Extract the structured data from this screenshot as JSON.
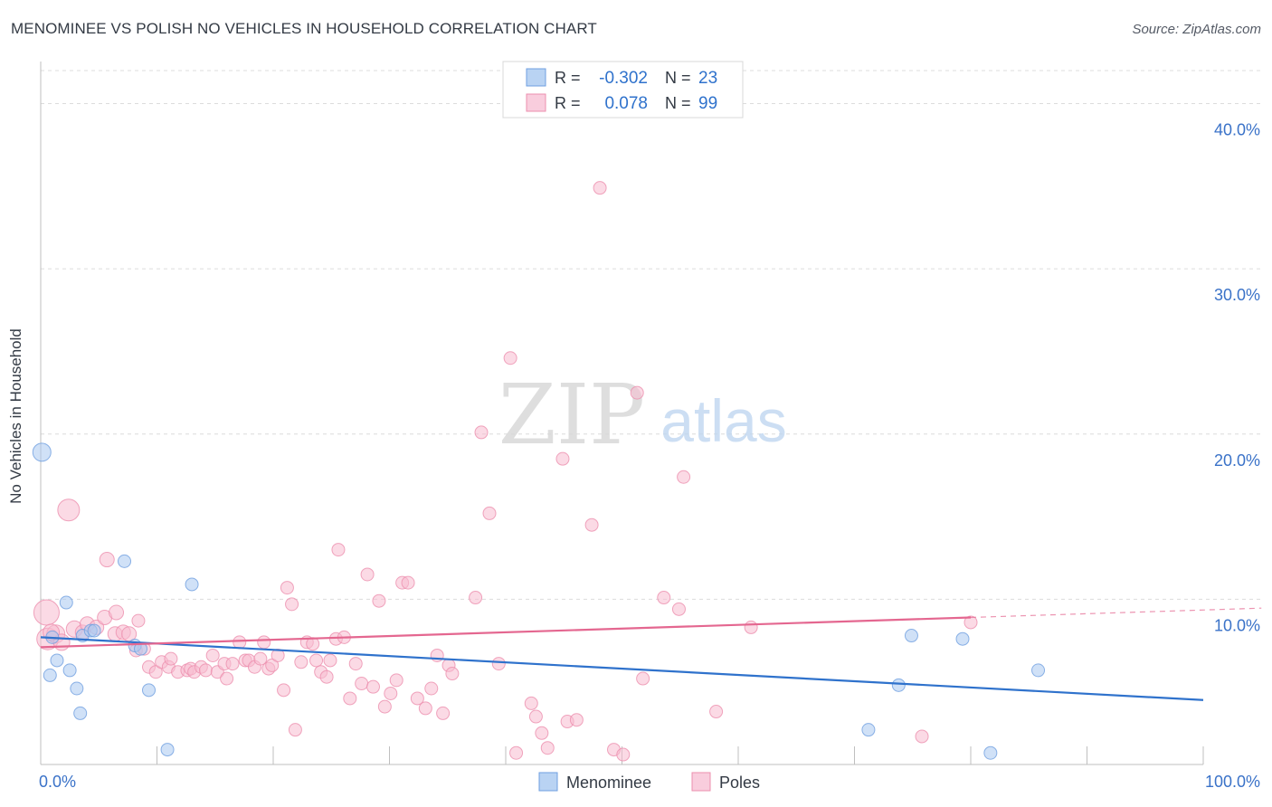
{
  "header": {
    "title": "MENOMINEE VS POLISH NO VEHICLES IN HOUSEHOLD CORRELATION CHART",
    "source": "Source: ZipAtlas.com"
  },
  "watermark": {
    "zip": "ZIP",
    "atlas": "atlas"
  },
  "colors": {
    "menominee_fill": "#a9c8f0",
    "menominee_stroke": "#6f9fe0",
    "menominee_line": "#2f72cc",
    "poles_fill": "#f7bcd0",
    "poles_stroke": "#ec8fae",
    "poles_line": "#e46790",
    "axis_text": "#3a72c8",
    "grid": "#dcdcdc"
  },
  "legend": {
    "rows": [
      {
        "r_label": "R =",
        "r_value": "-0.302",
        "n_label": "N =",
        "n_value": "23"
      },
      {
        "r_label": "R =",
        "r_value": "0.078",
        "n_label": "N =",
        "n_value": "99"
      }
    ]
  },
  "bottom_legend": [
    "Menominee",
    "Poles"
  ],
  "chart_data": {
    "type": "scatter",
    "xlabel": "",
    "ylabel": "No Vehicles in Household",
    "xlim": [
      0,
      100
    ],
    "ylim": [
      0,
      42
    ],
    "x_tick_labels": [
      {
        "value": 0,
        "label": "0.0%"
      },
      {
        "value": 100,
        "label": "100.0%"
      }
    ],
    "y_tick_labels": [
      {
        "value": 10,
        "label": "10.0%"
      },
      {
        "value": 20,
        "label": "20.0%"
      },
      {
        "value": 30,
        "label": "30.0%"
      },
      {
        "value": 40,
        "label": "40.0%"
      }
    ],
    "grid": true,
    "legend_position": "top-center",
    "series": [
      {
        "name": "Menominee",
        "trend": {
          "x": [
            0,
            100
          ],
          "y": [
            7.7,
            3.9
          ],
          "r": -0.302,
          "n": 23
        },
        "points": [
          {
            "x": 0.1,
            "y": 18.9,
            "s": 10
          },
          {
            "x": 1.0,
            "y": 7.7,
            "s": 7
          },
          {
            "x": 1.4,
            "y": 6.3,
            "s": 7
          },
          {
            "x": 0.8,
            "y": 5.4,
            "s": 7
          },
          {
            "x": 2.2,
            "y": 9.8,
            "s": 7
          },
          {
            "x": 2.5,
            "y": 5.7,
            "s": 7
          },
          {
            "x": 3.1,
            "y": 4.6,
            "s": 7
          },
          {
            "x": 3.4,
            "y": 3.1,
            "s": 7
          },
          {
            "x": 3.6,
            "y": 7.8,
            "s": 7
          },
          {
            "x": 4.3,
            "y": 8.1,
            "s": 7
          },
          {
            "x": 4.6,
            "y": 8.1,
            "s": 7
          },
          {
            "x": 7.2,
            "y": 12.3,
            "s": 7
          },
          {
            "x": 8.1,
            "y": 7.2,
            "s": 7
          },
          {
            "x": 8.6,
            "y": 7.0,
            "s": 7
          },
          {
            "x": 9.3,
            "y": 4.5,
            "s": 7
          },
          {
            "x": 10.9,
            "y": 0.9,
            "s": 7
          },
          {
            "x": 13.0,
            "y": 10.9,
            "s": 7
          },
          {
            "x": 73.8,
            "y": 4.8,
            "s": 7
          },
          {
            "x": 74.9,
            "y": 7.8,
            "s": 7
          },
          {
            "x": 71.2,
            "y": 2.1,
            "s": 7
          },
          {
            "x": 79.3,
            "y": 7.6,
            "s": 7
          },
          {
            "x": 81.7,
            "y": 0.7,
            "s": 7
          },
          {
            "x": 85.8,
            "y": 5.7,
            "s": 7
          }
        ]
      },
      {
        "name": "Poles",
        "trend": {
          "x": [
            0,
            80
          ],
          "y": [
            7.1,
            8.9
          ],
          "r": 0.078,
          "n": 99
        },
        "points": [
          {
            "x": 0.5,
            "y": 9.2,
            "s": 14
          },
          {
            "x": 0.6,
            "y": 7.6,
            "s": 12
          },
          {
            "x": 1.3,
            "y": 7.9,
            "s": 10
          },
          {
            "x": 1.8,
            "y": 7.4,
            "s": 9
          },
          {
            "x": 2.4,
            "y": 15.4,
            "s": 12
          },
          {
            "x": 2.9,
            "y": 8.2,
            "s": 9
          },
          {
            "x": 3.6,
            "y": 8.0,
            "s": 8
          },
          {
            "x": 4.0,
            "y": 8.5,
            "s": 8
          },
          {
            "x": 4.8,
            "y": 8.3,
            "s": 8
          },
          {
            "x": 5.5,
            "y": 8.9,
            "s": 8
          },
          {
            "x": 5.7,
            "y": 12.4,
            "s": 8
          },
          {
            "x": 6.4,
            "y": 7.9,
            "s": 8
          },
          {
            "x": 6.5,
            "y": 9.2,
            "s": 8
          },
          {
            "x": 7.1,
            "y": 8.0,
            "s": 8
          },
          {
            "x": 7.6,
            "y": 7.9,
            "s": 8
          },
          {
            "x": 8.2,
            "y": 6.9,
            "s": 7
          },
          {
            "x": 8.4,
            "y": 8.7,
            "s": 7
          },
          {
            "x": 8.9,
            "y": 7.0,
            "s": 7
          },
          {
            "x": 9.3,
            "y": 5.9,
            "s": 7
          },
          {
            "x": 9.9,
            "y": 5.6,
            "s": 7
          },
          {
            "x": 10.4,
            "y": 6.2,
            "s": 7
          },
          {
            "x": 11.0,
            "y": 5.9,
            "s": 7
          },
          {
            "x": 11.2,
            "y": 6.4,
            "s": 7
          },
          {
            "x": 11.8,
            "y": 5.6,
            "s": 7
          },
          {
            "x": 12.6,
            "y": 5.7,
            "s": 7
          },
          {
            "x": 12.9,
            "y": 5.8,
            "s": 7
          },
          {
            "x": 13.2,
            "y": 5.6,
            "s": 7
          },
          {
            "x": 13.8,
            "y": 5.9,
            "s": 7
          },
          {
            "x": 14.2,
            "y": 5.7,
            "s": 7
          },
          {
            "x": 14.8,
            "y": 6.6,
            "s": 7
          },
          {
            "x": 15.2,
            "y": 5.6,
            "s": 7
          },
          {
            "x": 15.8,
            "y": 6.1,
            "s": 7
          },
          {
            "x": 16.0,
            "y": 5.2,
            "s": 7
          },
          {
            "x": 16.5,
            "y": 6.1,
            "s": 7
          },
          {
            "x": 17.1,
            "y": 7.4,
            "s": 7
          },
          {
            "x": 17.6,
            "y": 6.3,
            "s": 7
          },
          {
            "x": 17.9,
            "y": 6.3,
            "s": 7
          },
          {
            "x": 18.4,
            "y": 5.9,
            "s": 7
          },
          {
            "x": 18.9,
            "y": 6.4,
            "s": 7
          },
          {
            "x": 19.2,
            "y": 7.4,
            "s": 7
          },
          {
            "x": 19.6,
            "y": 5.8,
            "s": 7
          },
          {
            "x": 19.9,
            "y": 6.0,
            "s": 7
          },
          {
            "x": 20.4,
            "y": 6.6,
            "s": 7
          },
          {
            "x": 20.9,
            "y": 4.5,
            "s": 7
          },
          {
            "x": 21.2,
            "y": 10.7,
            "s": 7
          },
          {
            "x": 21.6,
            "y": 9.7,
            "s": 7
          },
          {
            "x": 21.9,
            "y": 2.1,
            "s": 7
          },
          {
            "x": 22.4,
            "y": 6.2,
            "s": 7
          },
          {
            "x": 22.9,
            "y": 7.4,
            "s": 7
          },
          {
            "x": 23.4,
            "y": 7.3,
            "s": 7
          },
          {
            "x": 23.7,
            "y": 6.3,
            "s": 7
          },
          {
            "x": 24.1,
            "y": 5.6,
            "s": 7
          },
          {
            "x": 24.6,
            "y": 5.3,
            "s": 7
          },
          {
            "x": 24.9,
            "y": 6.3,
            "s": 7
          },
          {
            "x": 25.4,
            "y": 7.6,
            "s": 7
          },
          {
            "x": 25.6,
            "y": 13.0,
            "s": 7
          },
          {
            "x": 26.1,
            "y": 7.7,
            "s": 7
          },
          {
            "x": 26.6,
            "y": 4.0,
            "s": 7
          },
          {
            "x": 27.1,
            "y": 6.1,
            "s": 7
          },
          {
            "x": 27.6,
            "y": 4.9,
            "s": 7
          },
          {
            "x": 28.1,
            "y": 11.5,
            "s": 7
          },
          {
            "x": 28.6,
            "y": 4.7,
            "s": 7
          },
          {
            "x": 29.1,
            "y": 9.9,
            "s": 7
          },
          {
            "x": 29.6,
            "y": 3.5,
            "s": 7
          },
          {
            "x": 30.1,
            "y": 4.3,
            "s": 7
          },
          {
            "x": 30.6,
            "y": 5.1,
            "s": 7
          },
          {
            "x": 31.1,
            "y": 11.0,
            "s": 7
          },
          {
            "x": 31.6,
            "y": 11.0,
            "s": 7
          },
          {
            "x": 32.4,
            "y": 4.0,
            "s": 7
          },
          {
            "x": 33.1,
            "y": 3.4,
            "s": 7
          },
          {
            "x": 33.6,
            "y": 4.6,
            "s": 7
          },
          {
            "x": 34.1,
            "y": 6.6,
            "s": 7
          },
          {
            "x": 34.6,
            "y": 3.1,
            "s": 7
          },
          {
            "x": 35.1,
            "y": 6.0,
            "s": 7
          },
          {
            "x": 35.4,
            "y": 5.5,
            "s": 7
          },
          {
            "x": 37.4,
            "y": 10.1,
            "s": 7
          },
          {
            "x": 37.9,
            "y": 20.1,
            "s": 7
          },
          {
            "x": 38.6,
            "y": 15.2,
            "s": 7
          },
          {
            "x": 39.4,
            "y": 6.1,
            "s": 7
          },
          {
            "x": 40.4,
            "y": 24.6,
            "s": 7
          },
          {
            "x": 40.9,
            "y": 0.7,
            "s": 7
          },
          {
            "x": 42.2,
            "y": 3.7,
            "s": 7
          },
          {
            "x": 42.6,
            "y": 2.9,
            "s": 7
          },
          {
            "x": 43.1,
            "y": 1.9,
            "s": 7
          },
          {
            "x": 43.6,
            "y": 1.0,
            "s": 7
          },
          {
            "x": 44.9,
            "y": 18.5,
            "s": 7
          },
          {
            "x": 45.3,
            "y": 2.6,
            "s": 7
          },
          {
            "x": 46.1,
            "y": 2.7,
            "s": 7
          },
          {
            "x": 47.4,
            "y": 14.5,
            "s": 7
          },
          {
            "x": 48.1,
            "y": 34.9,
            "s": 7
          },
          {
            "x": 49.3,
            "y": 0.9,
            "s": 7
          },
          {
            "x": 50.1,
            "y": 0.6,
            "s": 7
          },
          {
            "x": 51.3,
            "y": 22.5,
            "s": 7
          },
          {
            "x": 51.8,
            "y": 5.2,
            "s": 7
          },
          {
            "x": 53.6,
            "y": 10.1,
            "s": 7
          },
          {
            "x": 54.9,
            "y": 9.4,
            "s": 7
          },
          {
            "x": 55.3,
            "y": 17.4,
            "s": 7
          },
          {
            "x": 58.1,
            "y": 3.2,
            "s": 7
          },
          {
            "x": 61.1,
            "y": 8.3,
            "s": 7
          },
          {
            "x": 75.8,
            "y": 1.7,
            "s": 7
          },
          {
            "x": 80.0,
            "y": 8.6,
            "s": 7
          },
          {
            "x": 0.9,
            "y": 8.0,
            "s": 9
          }
        ]
      }
    ]
  }
}
